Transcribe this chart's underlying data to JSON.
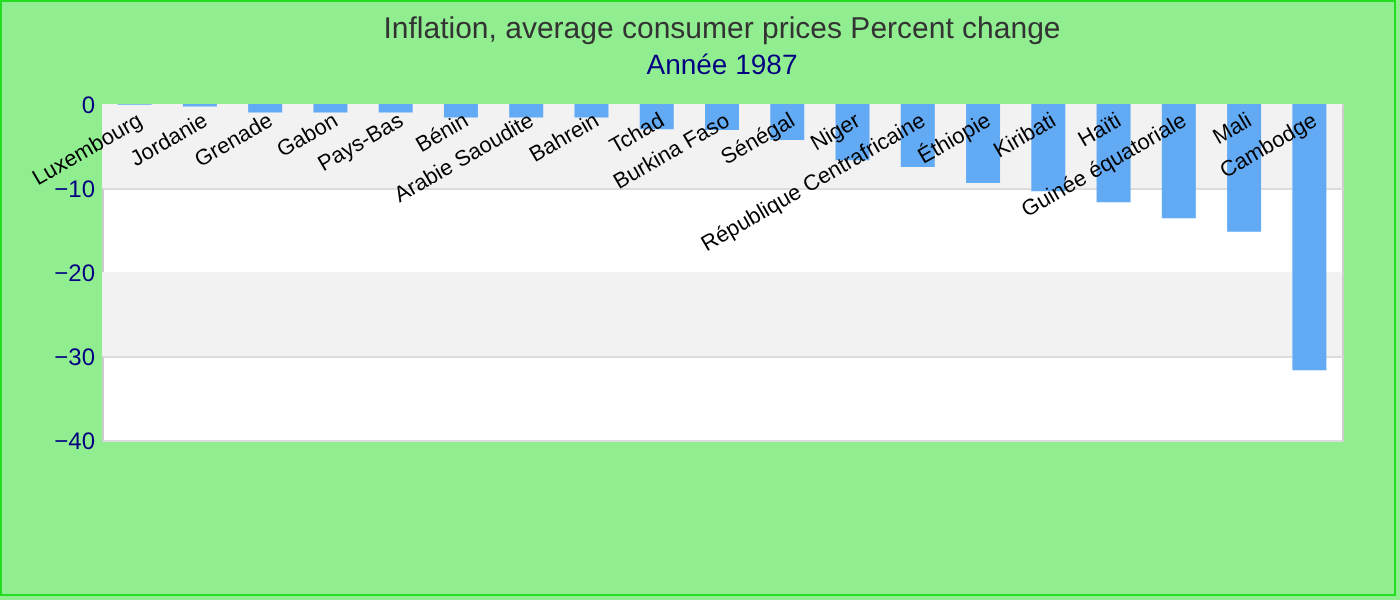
{
  "chart_data": {
    "type": "bar",
    "title": "Inflation, average consumer prices  Percent change",
    "subtitle": "Année 1987",
    "categories": [
      "Luxembourg",
      "Jordanie",
      "Grenade",
      "Gabon",
      "Pays-Bas",
      "Bénin",
      "Arabie Saoudite",
      "Bahrein",
      "Tchad",
      "Burkina Faso",
      "Sénégal",
      "Niger",
      "République Centrafricaine",
      "Éthiopie",
      "Kiribati",
      "Haïti",
      "Guinée équatoriale",
      "Mali",
      "Cambodge"
    ],
    "values": [
      -0.1,
      -0.3,
      -1.0,
      -1.0,
      -1.0,
      -1.6,
      -1.6,
      -1.6,
      -3.0,
      -3.1,
      -4.3,
      -6.7,
      -7.5,
      -9.4,
      -10.4,
      -11.7,
      -13.6,
      -15.2,
      -31.7
    ],
    "color": "#63aaf5",
    "ylim": [
      -40,
      0
    ],
    "yticks": [
      -40,
      -30,
      -20,
      -10,
      0
    ],
    "grid": "y"
  }
}
